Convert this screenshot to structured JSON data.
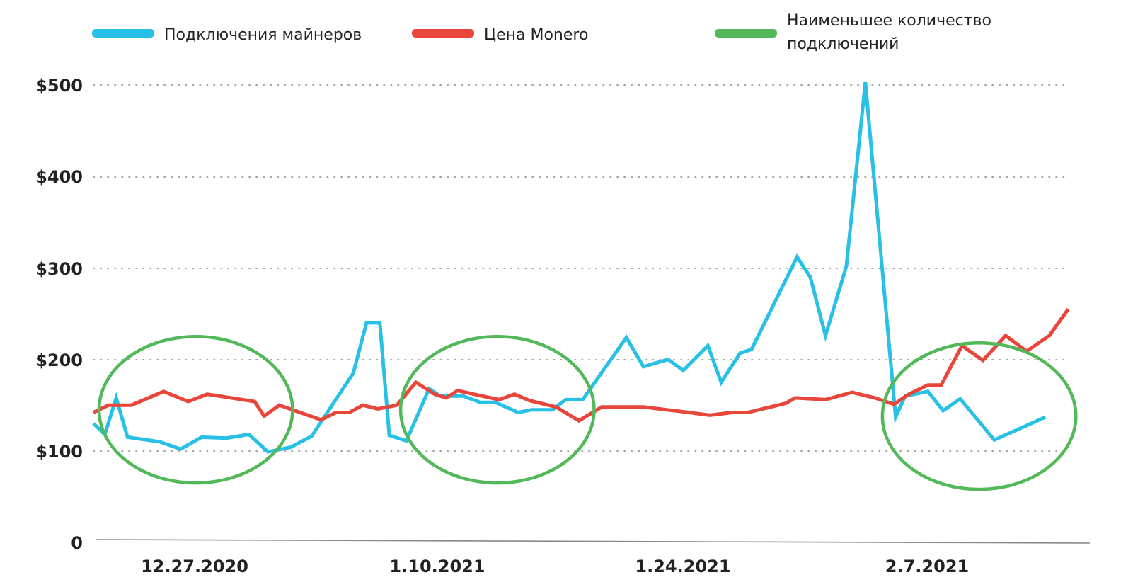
{
  "chart_data": {
    "type": "line",
    "title": "",
    "xlabel": "",
    "ylabel": "",
    "ylim": [
      0,
      500
    ],
    "grid": true,
    "legend_position": "top",
    "y_ticks": [
      "0",
      "$100",
      "$200",
      "$300",
      "$400",
      "$500"
    ],
    "x_tick_labels": [
      "12.27.2020",
      "1.10.2021",
      "1.24.2021",
      "2.7.2021"
    ],
    "legend": [
      {
        "name": "Подключения майнеров",
        "color": "#29c0e6"
      },
      {
        "name": "Цена Monero",
        "color": "#e8463a"
      },
      {
        "name": "Наименьшее количество подключений",
        "line1": "Наименьшее количество",
        "line2": "подключений",
        "color": "#52b859"
      }
    ],
    "series": [
      {
        "name": "Подключения майнеров",
        "color": "#29c0e6",
        "points": [
          [
            0,
            130
          ],
          [
            0.6,
            118
          ],
          [
            1.2,
            158
          ],
          [
            1.8,
            115
          ],
          [
            3.5,
            110
          ],
          [
            4.6,
            102
          ],
          [
            5.7,
            115
          ],
          [
            7,
            114
          ],
          [
            8.2,
            118
          ],
          [
            9.2,
            99
          ],
          [
            10.4,
            104
          ],
          [
            11.5,
            116
          ],
          [
            13.7,
            185
          ],
          [
            14.4,
            240
          ],
          [
            15.1,
            240
          ],
          [
            15.6,
            117
          ],
          [
            16.5,
            111
          ],
          [
            17.7,
            168
          ],
          [
            18.3,
            160
          ],
          [
            19.5,
            160
          ],
          [
            20.4,
            153
          ],
          [
            21.2,
            153
          ],
          [
            22.4,
            142
          ],
          [
            23.1,
            145
          ],
          [
            24.2,
            145
          ],
          [
            24.9,
            156
          ],
          [
            25.8,
            156
          ],
          [
            28.1,
            224
          ],
          [
            29,
            192
          ],
          [
            30.3,
            200
          ],
          [
            31.1,
            188
          ],
          [
            32.4,
            215
          ],
          [
            33.1,
            175
          ],
          [
            34.1,
            207
          ],
          [
            34.7,
            211
          ],
          [
            37.1,
            312
          ],
          [
            37.8,
            290
          ],
          [
            38.6,
            226
          ],
          [
            39.7,
            302
          ],
          [
            40.7,
            503
          ],
          [
            42.3,
            137
          ],
          [
            42.8,
            160
          ],
          [
            44,
            165
          ],
          [
            44.8,
            144
          ],
          [
            45.7,
            157
          ],
          [
            47.5,
            112
          ],
          [
            50.2,
            137
          ]
        ]
      },
      {
        "name": "Цена Monero",
        "color": "#e8463a",
        "points": [
          [
            0,
            142
          ],
          [
            0.8,
            150
          ],
          [
            2,
            150
          ],
          [
            3.7,
            165
          ],
          [
            5,
            154
          ],
          [
            6,
            162
          ],
          [
            8.5,
            154
          ],
          [
            9,
            138
          ],
          [
            9.8,
            150
          ],
          [
            12,
            134
          ],
          [
            12.8,
            142
          ],
          [
            13.5,
            142
          ],
          [
            14.2,
            150
          ],
          [
            15,
            146
          ],
          [
            16,
            150
          ],
          [
            17,
            175
          ],
          [
            18,
            162
          ],
          [
            18.6,
            158
          ],
          [
            19.2,
            166
          ],
          [
            20.5,
            160
          ],
          [
            21.4,
            156
          ],
          [
            22.2,
            162
          ],
          [
            23,
            155
          ],
          [
            24.4,
            148
          ],
          [
            25.6,
            133
          ],
          [
            26.8,
            148
          ],
          [
            29,
            148
          ],
          [
            31,
            143
          ],
          [
            32.5,
            139
          ],
          [
            33.7,
            142
          ],
          [
            34.5,
            142
          ],
          [
            36.5,
            152
          ],
          [
            37,
            158
          ],
          [
            38.6,
            156
          ],
          [
            40,
            164
          ],
          [
            41.2,
            158
          ],
          [
            42.2,
            151
          ],
          [
            43,
            162
          ],
          [
            44,
            172
          ],
          [
            44.7,
            172
          ],
          [
            45.8,
            215
          ],
          [
            46.9,
            199
          ],
          [
            48.1,
            226
          ],
          [
            49.2,
            209
          ],
          [
            50.4,
            226
          ],
          [
            51.4,
            255
          ]
        ]
      }
    ],
    "highlights": [
      {
        "label": "Наименьшее количество подключений",
        "color": "#52b859",
        "x_center": 5.4,
        "y_center": 145,
        "x_radius": 5.1,
        "y_radius": 80
      },
      {
        "label": "Наименьшее количество подключений",
        "color": "#52b859",
        "x_center": 21.3,
        "y_center": 145,
        "x_radius": 5.1,
        "y_radius": 80
      },
      {
        "label": "Наименьшее количество подключений",
        "color": "#52b859",
        "x_center": 46.7,
        "y_center": 138,
        "x_radius": 5.1,
        "y_radius": 80
      }
    ]
  }
}
